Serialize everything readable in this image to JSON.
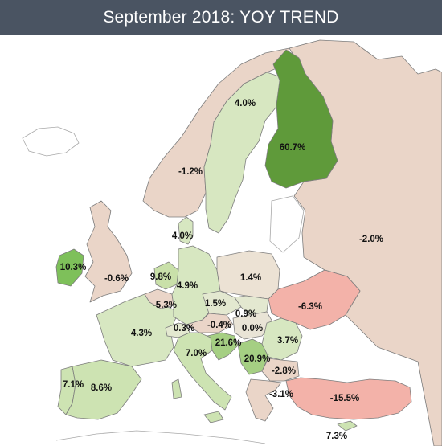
{
  "title": "September 2018: YOY TREND",
  "colors": {
    "title_bar": "#4a5462",
    "negative_light": "#ead5c8",
    "negative_medium": "#f3b2a9",
    "positive_light": "#d7e7c1",
    "positive_strong": "#5f9a3a"
  },
  "regions": [
    {
      "id": "norway",
      "value": "-1.2%",
      "color": "#ead5c8"
    },
    {
      "id": "sweden",
      "value": "4.0%",
      "color": "#d7e7c1"
    },
    {
      "id": "finland",
      "value": "60.7%",
      "color": "#5f9a3a"
    },
    {
      "id": "russia",
      "value": "-2.0%",
      "color": "#ead5c8"
    },
    {
      "id": "denmark",
      "value": "4.0%",
      "color": "#d7e7c1"
    },
    {
      "id": "ireland",
      "value": "10.3%",
      "color": "#7ec05a"
    },
    {
      "id": "uk",
      "value": "-0.6%",
      "color": "#ead5c8"
    },
    {
      "id": "netherlands",
      "value": "9.8%",
      "color": "#c9e0a9"
    },
    {
      "id": "belgium",
      "value": "-5.3%",
      "color": "#ead5c8"
    },
    {
      "id": "germany",
      "value": "4.9%",
      "color": "#d7e7c1"
    },
    {
      "id": "poland",
      "value": "1.4%",
      "color": "#ece2d4"
    },
    {
      "id": "czechia",
      "value": "1.5%",
      "color": "#e3e8d0"
    },
    {
      "id": "slovakia",
      "value": "0.9%",
      "color": "#e3e8d0"
    },
    {
      "id": "austria",
      "value": "-0.4%",
      "color": "#ead5c8"
    },
    {
      "id": "hungary",
      "value": "0.0%",
      "color": "#e9e4d6"
    },
    {
      "id": "switzerland",
      "value": "0.3%",
      "color": "#e3e8d0"
    },
    {
      "id": "france",
      "value": "4.3%",
      "color": "#d7e7c1"
    },
    {
      "id": "ukraine",
      "value": "-6.3%",
      "color": "#f3b2a9"
    },
    {
      "id": "romania",
      "value": "3.7%",
      "color": "#d7e7c1"
    },
    {
      "id": "croatia",
      "value": "21.6%",
      "color": "#a5cf83"
    },
    {
      "id": "serbia",
      "value": "20.9%",
      "color": "#a5cf83"
    },
    {
      "id": "italy",
      "value": "7.0%",
      "color": "#cde3b2"
    },
    {
      "id": "bulgaria",
      "value": "-2.8%",
      "color": "#ead5c8"
    },
    {
      "id": "greece",
      "value": "-3.1%",
      "color": "#ead5c8"
    },
    {
      "id": "turkey",
      "value": "-15.5%",
      "color": "#f3b2a9"
    },
    {
      "id": "cyprus",
      "value": "7.3%",
      "color": "#cde3b2"
    },
    {
      "id": "portugal",
      "value": "7.1%",
      "color": "#cde3b2"
    },
    {
      "id": "spain",
      "value": "8.6%",
      "color": "#cde3b2"
    }
  ]
}
